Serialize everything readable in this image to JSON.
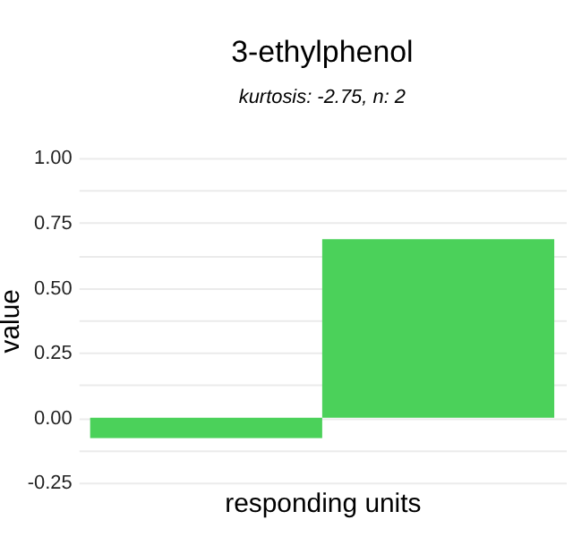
{
  "chart_data": {
    "type": "bar",
    "title": "3-ethylphenol",
    "subtitle": "kurtosis: -2.75, n: 2",
    "xlabel": "responding units",
    "ylabel": "value",
    "categories": [
      null,
      null
    ],
    "values": [
      -0.079,
      0.687
    ],
    "color": "#4bd15a",
    "ylim": [
      -0.25,
      1.0
    ],
    "yticks": [
      {
        "value": -0.25,
        "label": "-0.25"
      },
      {
        "value": -0.125,
        "label": null
      },
      {
        "value": 0,
        "label": "0.00"
      },
      {
        "value": 0.125,
        "label": null
      },
      {
        "value": 0.25,
        "label": "0.25"
      },
      {
        "value": 0.375,
        "label": null
      },
      {
        "value": 0.5,
        "label": "0.50"
      },
      {
        "value": 0.625,
        "label": null
      },
      {
        "value": 0.75,
        "label": "0.75"
      },
      {
        "value": 0.875,
        "label": null
      },
      {
        "value": 1,
        "label": "1.00"
      }
    ],
    "grid": "y",
    "tick_labels": "y"
  }
}
